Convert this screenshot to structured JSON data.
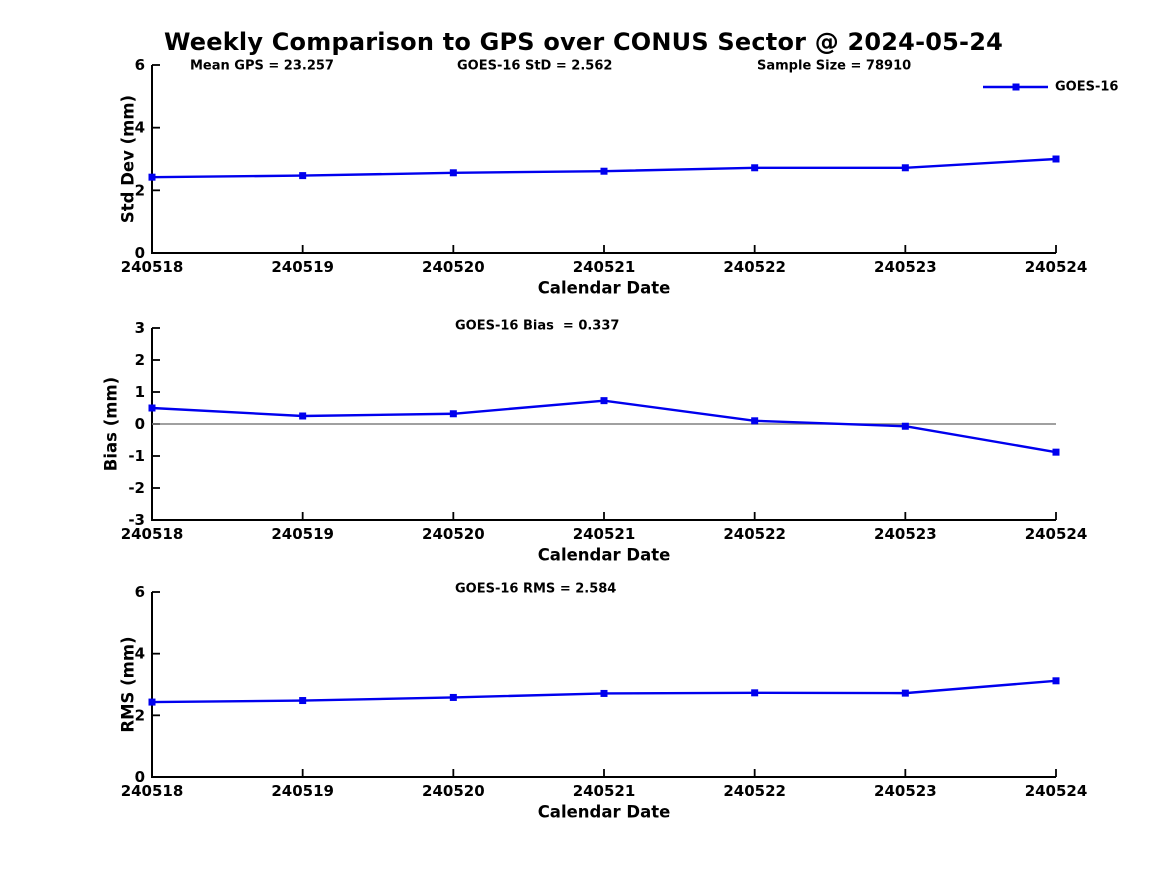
{
  "page_title": "Weekly Comparison to GPS over CONUS Sector @ 2024-05-24",
  "style": {
    "line_color": "#0000EE",
    "marker": "square",
    "zero_line_color": "#808080",
    "axis_color": "#000000",
    "text_color": "#000000",
    "background": "#FFFFFF"
  },
  "chart_data": [
    {
      "name": "std-dev",
      "type": "line",
      "categories": [
        "240518",
        "240519",
        "240520",
        "240521",
        "240522",
        "240523",
        "240524"
      ],
      "series": [
        {
          "name": "GOES-16",
          "values": [
            2.42,
            2.47,
            2.56,
            2.61,
            2.72,
            2.72,
            3.0
          ]
        }
      ],
      "xlabel": "Calendar Date",
      "ylabel": "Std Dev (mm)",
      "ylim": [
        0,
        6
      ],
      "yticks": [
        0,
        2,
        4,
        6
      ],
      "grid": false,
      "legend": {
        "label": "GOES-16",
        "position": "top-right"
      },
      "annotations": [
        "Mean GPS = 23.257",
        "GOES-16 StD = 2.562",
        "Sample Size = 78910"
      ]
    },
    {
      "name": "bias",
      "type": "line",
      "categories": [
        "240518",
        "240519",
        "240520",
        "240521",
        "240522",
        "240523",
        "240524"
      ],
      "series": [
        {
          "name": "GOES-16",
          "values": [
            0.5,
            0.25,
            0.32,
            0.73,
            0.1,
            -0.07,
            -0.88
          ]
        }
      ],
      "xlabel": "Calendar Date",
      "ylabel": "Bias (mm)",
      "ylim": [
        -3,
        3
      ],
      "yticks": [
        -3,
        -2,
        -1,
        0,
        1,
        2,
        3
      ],
      "grid": false,
      "zero_line": true,
      "annotations": [
        "GOES-16 Bias  = 0.337"
      ]
    },
    {
      "name": "rms",
      "type": "line",
      "categories": [
        "240518",
        "240519",
        "240520",
        "240521",
        "240522",
        "240523",
        "240524"
      ],
      "series": [
        {
          "name": "GOES-16",
          "values": [
            2.43,
            2.48,
            2.58,
            2.71,
            2.73,
            2.72,
            3.12
          ]
        }
      ],
      "xlabel": "Calendar Date",
      "ylabel": "RMS (mm)",
      "ylim": [
        0,
        6
      ],
      "yticks": [
        0,
        2,
        4,
        6
      ],
      "grid": false,
      "annotations": [
        "GOES-16 RMS = 2.584"
      ]
    }
  ]
}
